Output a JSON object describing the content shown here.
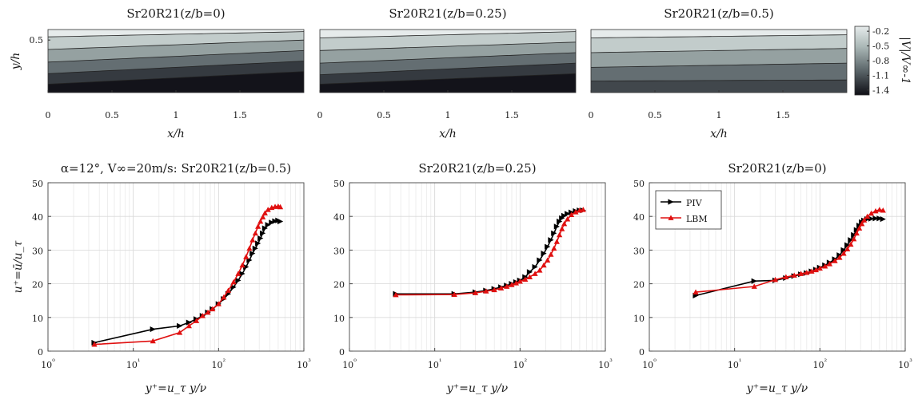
{
  "figure": {
    "suptitle": "α=12°,  V∞=20m/s: ",
    "colorbar": {
      "label": "|V|/V∞-1",
      "ticks": [
        "-0.2",
        "-0.5",
        "-0.8",
        "-1.1",
        "-1.4"
      ],
      "range": [
        -1.5,
        -0.1
      ],
      "colors": {
        "low": "#0f0f16",
        "high": "#e6ebeb"
      }
    }
  },
  "chart_data": [
    {
      "type": "heatmap",
      "title": "Sr20R21(z/b=0)",
      "xlabel": "x/h",
      "ylabel": "y/h",
      "xlim": [
        0,
        2
      ],
      "ylim": [
        0,
        0.6
      ],
      "xticks": [
        "0",
        "0.5",
        "1",
        "1.5"
      ],
      "yticks": [
        "0.5"
      ],
      "contour_levels": [
        -0.2,
        -0.5,
        -0.8,
        -1.1,
        -1.4
      ],
      "contour_heights_at_x0": [
        0.53,
        0.41,
        0.29,
        0.18,
        0.08
      ],
      "contour_heights_at_x2": [
        0.58,
        0.5,
        0.4,
        0.3,
        0.2
      ]
    },
    {
      "type": "heatmap",
      "title": "Sr20R21(z/b=0.25)",
      "xlabel": "x/h",
      "ylabel": "",
      "xlim": [
        0,
        2
      ],
      "ylim": [
        0,
        0.6
      ],
      "xticks": [
        "0",
        "0.5",
        "1",
        "1.5"
      ],
      "yticks": [],
      "contour_levels": [
        -0.2,
        -0.5,
        -0.8,
        -1.1,
        -1.4
      ],
      "contour_heights_at_x0": [
        0.52,
        0.4,
        0.28,
        0.17,
        0.08
      ],
      "contour_heights_at_x2": [
        0.58,
        0.48,
        0.38,
        0.28,
        0.18
      ]
    },
    {
      "type": "heatmap",
      "title": "Sr20R21(z/b=0.5)",
      "xlabel": "x/h",
      "ylabel": "",
      "xlim": [
        0,
        2
      ],
      "ylim": [
        0,
        0.6
      ],
      "xticks": [
        "0",
        "0.5",
        "1",
        "1.5"
      ],
      "yticks": [],
      "contour_levels": [
        -0.2,
        -0.5,
        -0.8,
        -1.1
      ],
      "contour_heights_at_x0": [
        0.52,
        0.38,
        0.24,
        0.11
      ],
      "contour_heights_at_x2": [
        0.55,
        0.42,
        0.28,
        0.12
      ]
    },
    {
      "type": "line",
      "title": "Sr20R21(z/b=0.5)",
      "xlabel": "y⁺=u_τ y/ν",
      "ylabel": "u⁺=ū/u_τ",
      "xscale": "log",
      "xlim": [
        1,
        1000
      ],
      "ylim": [
        0,
        50
      ],
      "xticks": [
        "10⁰",
        "10¹",
        "10²",
        "10³"
      ],
      "yticks": [
        "0",
        "10",
        "20",
        "30",
        "40",
        "50"
      ],
      "grid": true,
      "series": [
        {
          "name": "PIV",
          "color": "#000000",
          "marker": "triangle-right",
          "x": [
            3.5,
            17,
            35,
            45,
            55,
            65,
            75,
            85,
            100,
            115,
            130,
            150,
            170,
            190,
            210,
            230,
            250,
            270,
            290,
            310,
            330,
            350,
            380,
            420,
            460,
            500,
            530
          ],
          "y": [
            2.5,
            6.5,
            7.5,
            8.5,
            9.5,
            10.5,
            11.5,
            12.5,
            14,
            15.5,
            17,
            19,
            21,
            23,
            25,
            27,
            29,
            30.5,
            32,
            33.5,
            35,
            36.5,
            37.5,
            38.2,
            38.6,
            38.8,
            38.5
          ]
        },
        {
          "name": "LBM",
          "color": "#e01010",
          "marker": "triangle-up",
          "x": [
            3.5,
            17,
            35,
            45,
            55,
            65,
            75,
            85,
            100,
            115,
            130,
            150,
            170,
            190,
            210,
            230,
            250,
            270,
            290,
            310,
            330,
            350,
            380,
            420,
            460,
            500,
            530
          ],
          "y": [
            2,
            3,
            5.5,
            7.5,
            9,
            10.5,
            11.5,
            12.5,
            14,
            16,
            18,
            20.5,
            23,
            25.5,
            28,
            30.5,
            33,
            35,
            37,
            38.5,
            39.8,
            41,
            42,
            42.6,
            42.9,
            43,
            42.8
          ]
        }
      ]
    },
    {
      "type": "line",
      "title": "Sr20R21(z/b=0.25)",
      "xlabel": "y⁺=u_τ y/ν",
      "ylabel": "",
      "xscale": "log",
      "xlim": [
        1,
        1000
      ],
      "ylim": [
        0,
        50
      ],
      "xticks": [
        "10⁰",
        "10¹",
        "10²",
        "10³"
      ],
      "yticks": [
        "0",
        "10",
        "20",
        "30",
        "40",
        "50"
      ],
      "grid": true,
      "series": [
        {
          "name": "PIV",
          "color": "#000000",
          "marker": "triangle-right",
          "x": [
            3.5,
            17,
            30,
            40,
            50,
            60,
            70,
            80,
            90,
            100,
            115,
            130,
            150,
            170,
            190,
            210,
            230,
            250,
            270,
            290,
            310,
            330,
            360,
            400,
            450,
            500,
            550
          ],
          "y": [
            17,
            17,
            17.5,
            18,
            18.5,
            19,
            19.5,
            20,
            20.5,
            21,
            22,
            23.5,
            25,
            27,
            29,
            31,
            33,
            35,
            37,
            38.5,
            39.5,
            40.2,
            40.8,
            41.2,
            41.6,
            41.8,
            41.8
          ]
        },
        {
          "name": "LBM",
          "color": "#e01010",
          "marker": "triangle-up",
          "x": [
            3.5,
            17,
            30,
            40,
            50,
            60,
            70,
            80,
            90,
            100,
            115,
            130,
            150,
            170,
            190,
            210,
            230,
            250,
            270,
            290,
            310,
            330,
            360,
            400,
            450,
            500,
            550
          ],
          "y": [
            16.7,
            16.8,
            17.3,
            17.8,
            18.2,
            18.7,
            19.2,
            19.7,
            20.2,
            20.7,
            21.3,
            22,
            23,
            24,
            25.5,
            27,
            28.7,
            30.5,
            32.5,
            34.5,
            36.3,
            37.8,
            39.2,
            40.5,
            41.3,
            41.8,
            42
          ]
        }
      ]
    },
    {
      "type": "line",
      "title": "Sr20R21(z/b=0)",
      "xlabel": "y⁺=u_τ y/ν",
      "ylabel": "",
      "xscale": "log",
      "xlim": [
        1,
        1000
      ],
      "ylim": [
        0,
        50
      ],
      "xticks": [
        "10⁰",
        "10¹",
        "10²",
        "10³"
      ],
      "yticks": [
        "0",
        "10",
        "20",
        "30",
        "40",
        "50"
      ],
      "grid": true,
      "legend": {
        "placement": "top-left",
        "entries": [
          "PIV",
          "LBM"
        ]
      },
      "series": [
        {
          "name": "PIV",
          "color": "#000000",
          "marker": "triangle-right",
          "x": [
            3.5,
            17,
            30,
            40,
            50,
            60,
            70,
            80,
            90,
            100,
            115,
            130,
            150,
            170,
            190,
            210,
            230,
            250,
            270,
            290,
            310,
            330,
            360,
            400,
            450,
            500,
            550
          ],
          "y": [
            16.5,
            20.8,
            21,
            21.7,
            22.3,
            22.8,
            23.2,
            23.7,
            24.2,
            24.8,
            25.5,
            26.3,
            27.3,
            28.5,
            30,
            31.5,
            33,
            34.5,
            36,
            37.3,
            38.3,
            38.8,
            39.2,
            39.3,
            39.4,
            39.4,
            39.2
          ]
        },
        {
          "name": "LBM",
          "color": "#e01010",
          "marker": "triangle-up",
          "x": [
            3.5,
            17,
            30,
            40,
            50,
            60,
            70,
            80,
            90,
            100,
            115,
            130,
            150,
            170,
            190,
            210,
            230,
            250,
            270,
            290,
            310,
            330,
            360,
            400,
            450,
            500,
            550
          ],
          "y": [
            17.5,
            19.2,
            21.2,
            22,
            22.5,
            23,
            23.3,
            23.7,
            24.1,
            24.6,
            25.2,
            25.9,
            26.8,
            27.8,
            29,
            30.3,
            31.7,
            33.3,
            35,
            36.5,
            37.8,
            38.9,
            40,
            40.9,
            41.6,
            42,
            41.8
          ]
        }
      ]
    }
  ]
}
